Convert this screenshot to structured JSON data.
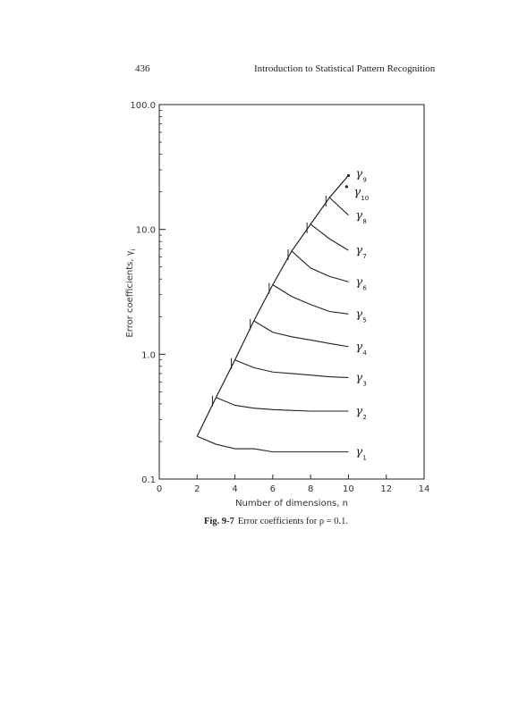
{
  "header": {
    "page_number": "436",
    "running_title": "Introduction to Statistical Pattern Recognition"
  },
  "caption": {
    "label": "Fig. 9-7",
    "text": "Error coefficients for ρ = 0.1."
  },
  "chart_data": {
    "type": "line",
    "title": "",
    "xlabel": "Number of dimensions, n",
    "ylabel": "Error coefficients, γ",
    "ylabel_subscript": "i",
    "yscale": "log",
    "xlim": [
      0,
      14
    ],
    "ylim": [
      0.1,
      100.0
    ],
    "x_ticks": [
      0,
      2,
      4,
      6,
      8,
      10,
      12,
      14
    ],
    "x_tick_labels": [
      "0",
      "2",
      "4",
      "6",
      "8",
      "10",
      "12",
      "14"
    ],
    "y_ticks": [
      0.1,
      1.0,
      10.0,
      100.0
    ],
    "y_tick_labels": [
      "0.1",
      "1.0",
      "10.0",
      "100.0"
    ],
    "grid": false,
    "legend": "none",
    "envelope": {
      "name": "",
      "x": [
        2,
        3,
        4,
        5,
        6,
        7,
        8,
        9,
        10
      ],
      "y": [
        0.22,
        0.45,
        0.9,
        1.85,
        3.6,
        6.7,
        11.0,
        18.0,
        27.0
      ]
    },
    "series": [
      {
        "label": "γ",
        "sub": "1",
        "x": [
          2,
          3,
          4,
          5,
          6,
          7,
          8,
          9,
          10
        ],
        "y": [
          0.22,
          0.19,
          0.175,
          0.175,
          0.165,
          0.165,
          0.165,
          0.165,
          0.165
        ]
      },
      {
        "label": "γ",
        "sub": "2",
        "x": [
          3,
          4,
          5,
          6,
          7,
          8,
          9,
          10
        ],
        "y": [
          0.45,
          0.39,
          0.37,
          0.36,
          0.355,
          0.35,
          0.35,
          0.35
        ]
      },
      {
        "label": "γ",
        "sub": "3",
        "x": [
          4,
          5,
          6,
          7,
          8,
          9,
          10
        ],
        "y": [
          0.9,
          0.78,
          0.72,
          0.7,
          0.68,
          0.66,
          0.65
        ]
      },
      {
        "label": "γ",
        "sub": "4",
        "x": [
          5,
          6,
          7,
          8,
          9,
          10
        ],
        "y": [
          1.85,
          1.5,
          1.38,
          1.3,
          1.22,
          1.15
        ]
      },
      {
        "label": "γ",
        "sub": "5",
        "x": [
          6,
          7,
          8,
          9,
          10
        ],
        "y": [
          3.6,
          2.9,
          2.5,
          2.2,
          2.1
        ]
      },
      {
        "label": "γ",
        "sub": "6",
        "x": [
          7,
          8,
          9,
          10
        ],
        "y": [
          6.7,
          4.9,
          4.2,
          3.8
        ]
      },
      {
        "label": "γ",
        "sub": "7",
        "x": [
          8,
          9,
          10
        ],
        "y": [
          11.0,
          8.4,
          6.8
        ]
      },
      {
        "label": "γ",
        "sub": "8",
        "x": [
          9,
          10
        ],
        "y": [
          18.0,
          13.0
        ]
      },
      {
        "label": "γ",
        "sub": "9",
        "x": [
          10
        ],
        "y": [
          27.0
        ]
      },
      {
        "label": "γ",
        "sub": "10",
        "x": [
          9.9
        ],
        "y": [
          22.0
        ]
      }
    ]
  }
}
